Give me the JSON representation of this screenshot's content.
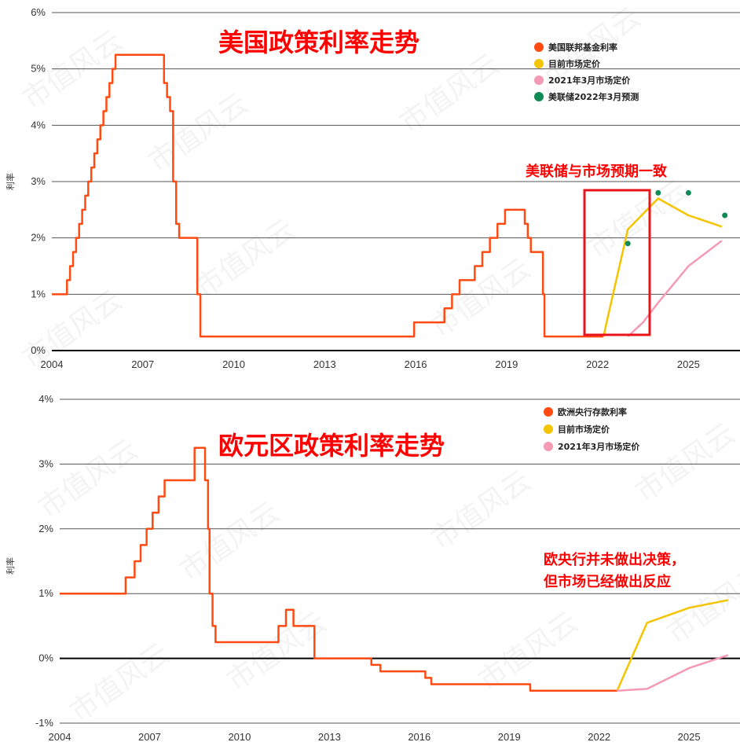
{
  "chart_data": [
    {
      "type": "line",
      "title": "美国政策利率走势",
      "ylabel": "利率",
      "xlim": [
        2004,
        2026.7
      ],
      "ylim": [
        0,
        6
      ],
      "xticks": [
        "2004",
        "2007",
        "2010",
        "2013",
        "2016",
        "2019",
        "2022",
        "2025"
      ],
      "yticks": [
        "0%",
        "1%",
        "2%",
        "3%",
        "4%",
        "5%",
        "6%"
      ],
      "annotation": "美联储与市场预期一致",
      "legend": [
        "美国联邦基金利率",
        "目前市场定价",
        "2021年3月市场定价",
        "美联储2022年3月预测"
      ],
      "legend_position": "top-right",
      "series": [
        {
          "name": "美国联邦基金利率",
          "color": "#ff4a12",
          "step": true,
          "x": [
            2004.0,
            2004.5,
            2004.6,
            2004.7,
            2004.8,
            2004.9,
            2005.0,
            2005.1,
            2005.2,
            2005.3,
            2005.4,
            2005.5,
            2005.6,
            2005.7,
            2005.8,
            2005.9,
            2006.0,
            2006.1,
            2006.2,
            2006.3,
            2006.4,
            2006.5,
            2007.7,
            2007.8,
            2007.9,
            2008.0,
            2008.1,
            2008.2,
            2008.3,
            2008.8,
            2008.9,
            2009.0,
            2015.95,
            2016.95,
            2017.2,
            2017.45,
            2017.95,
            2018.2,
            2018.45,
            2018.7,
            2018.95,
            2019.6,
            2019.7,
            2019.8,
            2020.2,
            2020.25,
            2022.2
          ],
          "y": [
            1.0,
            1.25,
            1.5,
            1.75,
            2.0,
            2.25,
            2.5,
            2.75,
            3.0,
            3.25,
            3.5,
            3.75,
            4.0,
            4.25,
            4.5,
            4.75,
            5.0,
            5.25,
            5.25,
            5.25,
            5.25,
            5.25,
            4.75,
            4.5,
            4.25,
            3.0,
            2.25,
            2.0,
            2.0,
            1.0,
            0.25,
            0.25,
            0.5,
            0.75,
            1.0,
            1.25,
            1.5,
            1.75,
            2.0,
            2.25,
            2.5,
            2.25,
            2.0,
            1.75,
            1.0,
            0.25,
            0.25
          ]
        },
        {
          "name": "目前市场定价",
          "color": "#f5c400",
          "x": [
            2022.2,
            2022.3,
            2023.0,
            2024.0,
            2025.0,
            2026.1
          ],
          "y": [
            0.25,
            0.5,
            2.15,
            2.7,
            2.4,
            2.2
          ]
        },
        {
          "name": "2021年3月市场定价",
          "color": "#f59ab4",
          "x": [
            2023.0,
            2023.5,
            2024.0,
            2025.0,
            2026.1
          ],
          "y": [
            0.25,
            0.5,
            0.85,
            1.5,
            1.95
          ]
        },
        {
          "name": "美联储2022年3月预测",
          "color": "#0f8a55",
          "type": "scatter",
          "x": [
            2023.0,
            2024.0,
            2025.0,
            2026.2
          ],
          "y": [
            1.9,
            2.8,
            2.8,
            2.4
          ]
        }
      ]
    },
    {
      "type": "line",
      "title": "欧元区政策利率走势",
      "ylabel": "利率",
      "xlim": [
        2004,
        2026.7
      ],
      "ylim": [
        -1,
        4
      ],
      "xticks": [
        "2004",
        "2007",
        "2010",
        "2013",
        "2016",
        "2019",
        "2022",
        "2025"
      ],
      "yticks": [
        "-1%",
        "0%",
        "1%",
        "2%",
        "3%",
        "4%"
      ],
      "annotation": [
        "欧央行并未做出决策，",
        "但市场已经做出反应"
      ],
      "legend": [
        "欧洲央行存款利率",
        "目前市场定价",
        "2021年3月市场定价"
      ],
      "legend_position": "top-right",
      "series": [
        {
          "name": "欧洲央行存款利率",
          "color": "#ff4a12",
          "step": true,
          "x": [
            2004.0,
            2005.9,
            2006.2,
            2006.5,
            2006.7,
            2006.9,
            2007.1,
            2007.3,
            2007.5,
            2008.5,
            2008.8,
            2008.85,
            2008.95,
            2009.0,
            2009.1,
            2009.2,
            2009.4,
            2011.3,
            2011.55,
            2011.8,
            2012.5,
            2014.4,
            2014.7,
            2016.2,
            2016.4,
            2019.7,
            2022.6
          ],
          "y": [
            1.0,
            1.0,
            1.25,
            1.5,
            1.75,
            2.0,
            2.25,
            2.5,
            2.75,
            3.25,
            3.25,
            2.75,
            2.0,
            1.0,
            0.5,
            0.25,
            0.25,
            0.5,
            0.75,
            0.5,
            0.0,
            -0.1,
            -0.2,
            -0.3,
            -0.4,
            -0.5,
            -0.5
          ]
        },
        {
          "name": "目前市场定价",
          "color": "#f5c400",
          "x": [
            2022.6,
            2023.6,
            2025.0,
            2026.3
          ],
          "y": [
            -0.5,
            0.55,
            0.78,
            0.9
          ]
        },
        {
          "name": "2021年3月市场定价",
          "color": "#f59ab4",
          "x": [
            2022.6,
            2023.6,
            2025.0,
            2026.3
          ],
          "y": [
            -0.5,
            -0.47,
            -0.15,
            0.05
          ]
        }
      ]
    }
  ],
  "watermark": "市值风云"
}
